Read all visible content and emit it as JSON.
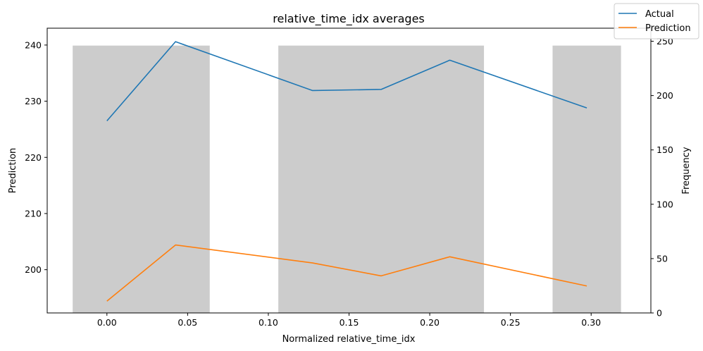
{
  "chart_data": {
    "type": "line",
    "title": "relative_time_idx averages",
    "xlabel": "Normalized relative_time_idx",
    "ylabel": "Prediction",
    "y2label": "Frequency",
    "xlim": [
      -0.037,
      0.337
    ],
    "ylim": [
      192.3,
      243.0
    ],
    "y2lim": [
      0,
      262
    ],
    "x_ticks": [
      0.0,
      0.05,
      0.1,
      0.15,
      0.2,
      0.25,
      0.3
    ],
    "x_tick_labels": [
      "0.00",
      "0.05",
      "0.10",
      "0.15",
      "0.20",
      "0.25",
      "0.30"
    ],
    "y_ticks": [
      200,
      210,
      220,
      230,
      240
    ],
    "y_tick_labels": [
      "200",
      "210",
      "220",
      "230",
      "240"
    ],
    "y2_ticks": [
      0,
      50,
      100,
      150,
      200,
      250
    ],
    "y2_tick_labels": [
      "0",
      "50",
      "100",
      "150",
      "200",
      "250"
    ],
    "grid": false,
    "legend_position": "top-right",
    "histogram": {
      "color": "#cccccc",
      "bars": [
        {
          "x_start": -0.0212,
          "x_end": 0.0637,
          "frequency": 246
        },
        {
          "x_start": 0.1062,
          "x_end": 0.2336,
          "frequency": 246
        },
        {
          "x_start": 0.2761,
          "x_end": 0.3185,
          "frequency": 246
        }
      ]
    },
    "series": [
      {
        "name": "Actual",
        "color": "#1f77b4",
        "x": [
          0.0,
          0.0425,
          0.1274,
          0.1699,
          0.2124,
          0.2973
        ],
        "y": [
          226.5,
          240.6,
          231.9,
          232.1,
          237.3,
          228.8
        ]
      },
      {
        "name": "Prediction",
        "color": "#ff7f0e",
        "x": [
          0.0,
          0.0425,
          0.1274,
          0.1699,
          0.2124,
          0.2973
        ],
        "y": [
          194.4,
          204.4,
          201.2,
          198.9,
          202.3,
          197.1
        ]
      }
    ]
  }
}
